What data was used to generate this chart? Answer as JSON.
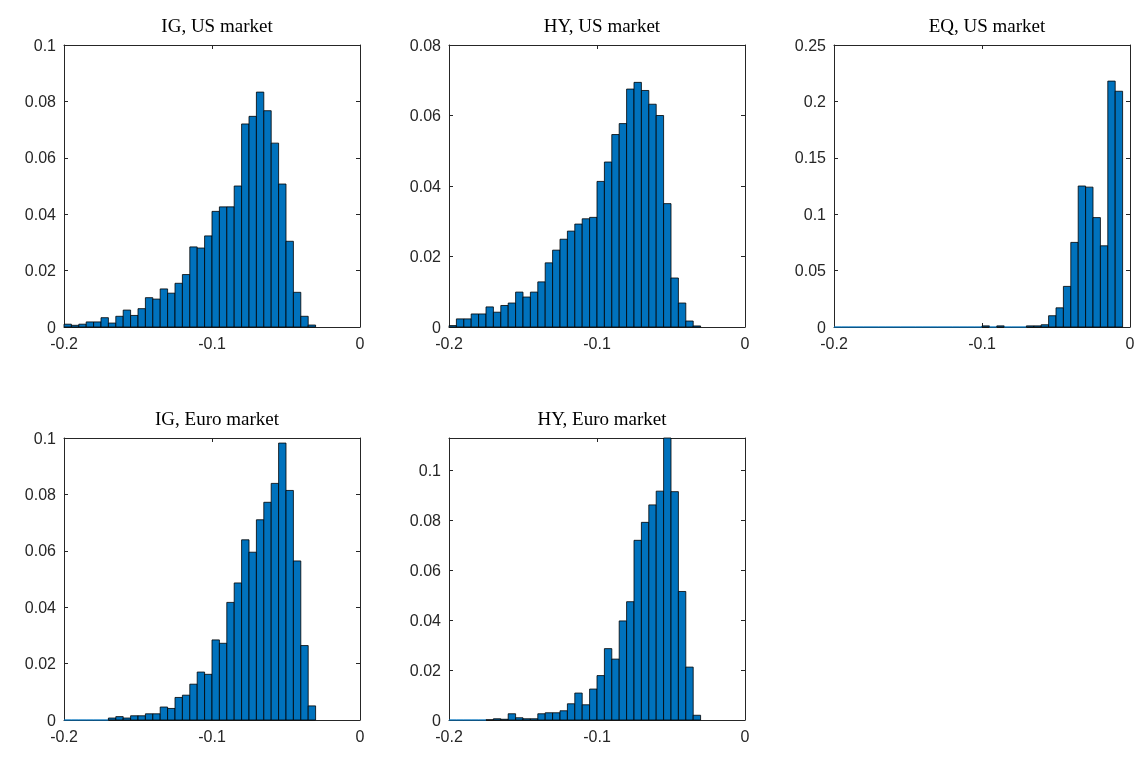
{
  "chart_data": [
    {
      "type": "histogram",
      "title": "IG, US market",
      "color": "#0072bd",
      "xlim": [
        -0.2,
        0
      ],
      "xticks": [
        -0.2,
        -0.1,
        0
      ],
      "ylim": [
        0,
        0.1
      ],
      "yticks": [
        0,
        0.02,
        0.04,
        0.06,
        0.08,
        0.1
      ],
      "bins": [
        -0.2,
        -0.195,
        -0.19,
        -0.185,
        -0.18,
        -0.175,
        -0.17,
        -0.165,
        -0.16,
        -0.155,
        -0.15,
        -0.145,
        -0.14,
        -0.135,
        -0.13,
        -0.125,
        -0.12,
        -0.115,
        -0.11,
        -0.105,
        -0.1,
        -0.095,
        -0.09,
        -0.085,
        -0.08,
        -0.075,
        -0.07,
        -0.065,
        -0.06,
        -0.055,
        -0.05,
        -0.045,
        -0.04,
        -0.035,
        -0.03
      ],
      "values": [
        0.001,
        0.0006,
        0.001,
        0.0018,
        0.0018,
        0.0033,
        0.0014,
        0.0038,
        0.006,
        0.0041,
        0.0065,
        0.0104,
        0.0099,
        0.0135,
        0.012,
        0.0155,
        0.0186,
        0.0284,
        0.028,
        0.0323,
        0.041,
        0.0426,
        0.0426,
        0.05,
        0.072,
        0.0747,
        0.0833,
        0.0767,
        0.0652,
        0.0507,
        0.0304,
        0.0123,
        0.0038,
        0.0007
      ]
    },
    {
      "type": "histogram",
      "title": "HY, US market",
      "color": "#0072bd",
      "xlim": [
        -0.2,
        0
      ],
      "xticks": [
        -0.2,
        -0.1,
        0
      ],
      "ylim": [
        0,
        0.08
      ],
      "yticks": [
        0,
        0.02,
        0.04,
        0.06,
        0.08
      ],
      "bins": [
        -0.2,
        -0.195,
        -0.19,
        -0.185,
        -0.18,
        -0.175,
        -0.17,
        -0.165,
        -0.16,
        -0.155,
        -0.15,
        -0.145,
        -0.14,
        -0.135,
        -0.13,
        -0.125,
        -0.12,
        -0.115,
        -0.11,
        -0.105,
        -0.1,
        -0.095,
        -0.09,
        -0.085,
        -0.08,
        -0.075,
        -0.07,
        -0.065,
        -0.06,
        -0.055,
        -0.05,
        -0.045,
        -0.04,
        -0.035,
        -0.03
      ],
      "values": [
        0.0004,
        0.0023,
        0.0023,
        0.0037,
        0.0037,
        0.0057,
        0.0042,
        0.0061,
        0.0068,
        0.0099,
        0.0085,
        0.0099,
        0.0128,
        0.0182,
        0.0218,
        0.0249,
        0.0272,
        0.0292,
        0.0307,
        0.0311,
        0.0413,
        0.0468,
        0.0546,
        0.0577,
        0.0675,
        0.0694,
        0.0671,
        0.0632,
        0.06,
        0.035,
        0.0139,
        0.0068,
        0.0017,
        0.0003
      ]
    },
    {
      "type": "histogram",
      "title": "EQ, US market",
      "color": "#0072bd",
      "xlim": [
        -0.2,
        0
      ],
      "xticks": [
        -0.2,
        -0.1,
        0
      ],
      "ylim": [
        0,
        0.25
      ],
      "yticks": [
        0,
        0.05,
        0.1,
        0.15,
        0.2,
        0.25
      ],
      "bins": [
        -0.2,
        -0.195,
        -0.19,
        -0.185,
        -0.18,
        -0.175,
        -0.17,
        -0.165,
        -0.16,
        -0.155,
        -0.15,
        -0.145,
        -0.14,
        -0.135,
        -0.13,
        -0.125,
        -0.12,
        -0.115,
        -0.11,
        -0.105,
        -0.1,
        -0.095,
        -0.09,
        -0.085,
        -0.08,
        -0.075,
        -0.07,
        -0.065,
        -0.06,
        -0.055,
        -0.05,
        -0.045,
        -0.04,
        -0.035,
        -0.03,
        -0.025,
        -0.02,
        -0.015,
        -0.01,
        -0.005
      ],
      "values": [
        0,
        0,
        0,
        0,
        0,
        0,
        0,
        0,
        0,
        0,
        0,
        0,
        0,
        0,
        0,
        0,
        0,
        0,
        0,
        0,
        0.001,
        0,
        0.001,
        0,
        0,
        0,
        0.001,
        0.001,
        0.002,
        0.01,
        0.017,
        0.036,
        0.075,
        0.125,
        0.124,
        0.097,
        0.072,
        0.218,
        0.209
      ]
    },
    {
      "type": "histogram",
      "title": "IG, Euro market",
      "color": "#0072bd",
      "xlim": [
        -0.2,
        0
      ],
      "xticks": [
        -0.2,
        -0.1,
        0
      ],
      "ylim": [
        0,
        0.1
      ],
      "yticks": [
        0,
        0.02,
        0.04,
        0.06,
        0.08,
        0.1
      ],
      "bins": [
        -0.2,
        -0.195,
        -0.19,
        -0.185,
        -0.18,
        -0.175,
        -0.17,
        -0.165,
        -0.16,
        -0.155,
        -0.15,
        -0.145,
        -0.14,
        -0.135,
        -0.13,
        -0.125,
        -0.12,
        -0.115,
        -0.11,
        -0.105,
        -0.1,
        -0.095,
        -0.09,
        -0.085,
        -0.08,
        -0.075,
        -0.07,
        -0.065,
        -0.06,
        -0.055,
        -0.05,
        -0.045,
        -0.04,
        -0.035,
        -0.03
      ],
      "values": [
        0,
        0,
        0,
        0,
        0,
        0,
        0.0007,
        0.0012,
        0.0007,
        0.0015,
        0.0015,
        0.0022,
        0.0022,
        0.0046,
        0.0041,
        0.008,
        0.0088,
        0.0127,
        0.017,
        0.0162,
        0.0284,
        0.0272,
        0.0417,
        0.0486,
        0.0639,
        0.0595,
        0.071,
        0.0772,
        0.0839,
        0.0982,
        0.0814,
        0.0564,
        0.0264,
        0.005
      ]
    },
    {
      "type": "histogram",
      "title": "HY, Euro market",
      "color": "#0072bd",
      "xlim": [
        -0.2,
        0
      ],
      "xticks": [
        -0.2,
        -0.1,
        0
      ],
      "ylim": [
        0,
        0.113
      ],
      "yticks": [
        0,
        0.02,
        0.04,
        0.06,
        0.08,
        0.1
      ],
      "bins": [
        -0.2,
        -0.195,
        -0.19,
        -0.185,
        -0.18,
        -0.175,
        -0.17,
        -0.165,
        -0.16,
        -0.155,
        -0.15,
        -0.145,
        -0.14,
        -0.135,
        -0.13,
        -0.125,
        -0.12,
        -0.115,
        -0.11,
        -0.105,
        -0.1,
        -0.095,
        -0.09,
        -0.085,
        -0.08,
        -0.075,
        -0.07,
        -0.065,
        -0.06,
        -0.055,
        -0.05,
        -0.045,
        -0.04,
        -0.035,
        -0.03
      ],
      "values": [
        0,
        0,
        0,
        0,
        0,
        0.0001,
        0.0005,
        0.0003,
        0.0025,
        0.0009,
        0.0005,
        0.0005,
        0.0025,
        0.0029,
        0.0029,
        0.0037,
        0.0065,
        0.0108,
        0.0061,
        0.0124,
        0.0178,
        0.0286,
        0.0244,
        0.0397,
        0.0474,
        0.072,
        0.0792,
        0.0862,
        0.0917,
        0.113,
        0.0915,
        0.0515,
        0.0212,
        0.0019
      ]
    }
  ]
}
